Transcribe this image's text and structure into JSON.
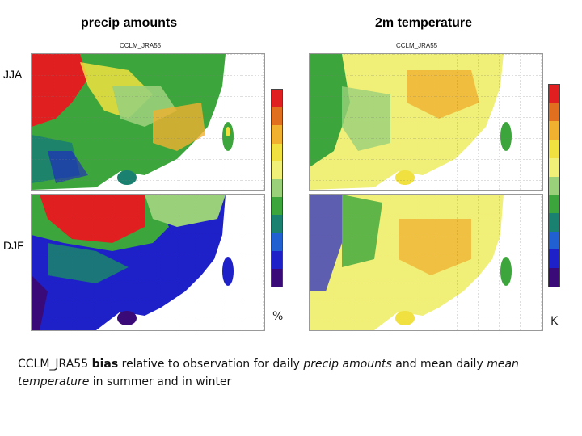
{
  "columns": {
    "precip_title": "precip amounts",
    "temp_title": "2m temperature"
  },
  "rows": {
    "summer": "JJA",
    "winter": "DJF"
  },
  "panel_label": "CCLM_JRA55",
  "units": {
    "precip": "%",
    "temp": "K"
  },
  "colorbar_colors": [
    "#3a0a78",
    "#1e20c8",
    "#2060d0",
    "#1a8070",
    "#3ca63c",
    "#9ad07a",
    "#f0f078",
    "#f0e040",
    "#f0b030",
    "#e07020",
    "#e02020"
  ],
  "caption": {
    "part1": "CCLM_JRA55 ",
    "bold": "bias",
    "part2": " relative to observation for daily ",
    "italic1": "precip amounts",
    "part3": " and mean daily ",
    "italic2": "mean temperature",
    "part4": " in summer and in winter"
  }
}
